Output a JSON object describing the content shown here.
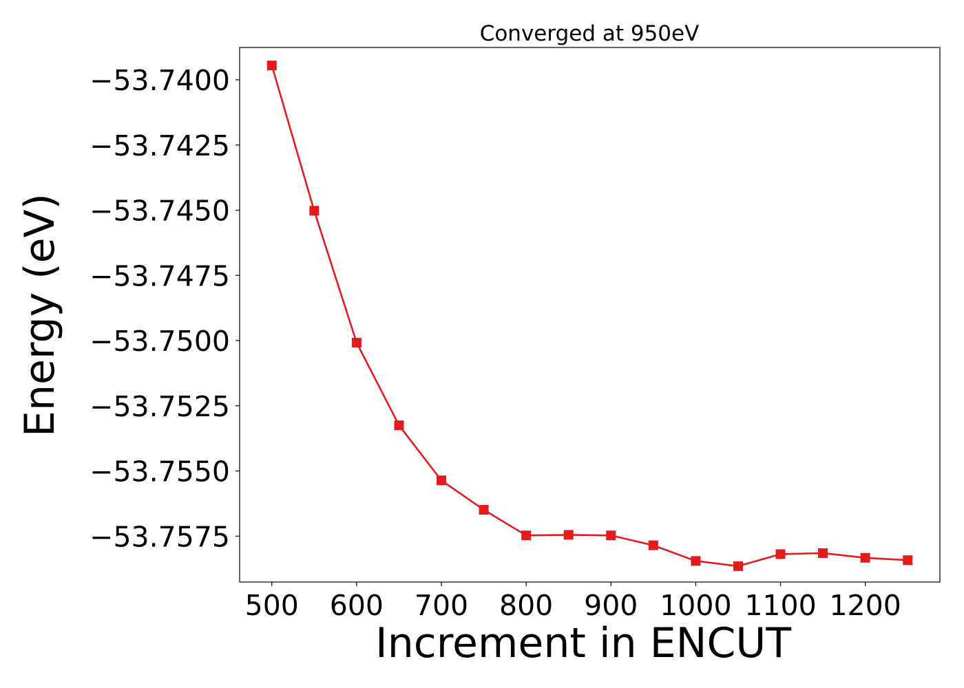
{
  "chart_data": {
    "type": "line",
    "title": "Converged at 950eV",
    "xlabel": "Increment in ENCUT",
    "ylabel": "Energy (eV)",
    "x": [
      500,
      550,
      600,
      650,
      700,
      750,
      800,
      850,
      900,
      950,
      1000,
      1050,
      1100,
      1150,
      1200,
      1250
    ],
    "series": [
      {
        "values": [
          -53.73945,
          -53.74502,
          -53.75008,
          -53.75325,
          -53.75536,
          -53.75649,
          -53.75747,
          -53.75745,
          -53.75747,
          -53.75785,
          -53.75845,
          -53.75865,
          -53.75819,
          -53.75815,
          -53.75833,
          -53.75842
        ],
        "color": "#e41a1c",
        "marker": "square"
      }
    ],
    "xlim": [
      462,
      1288
    ],
    "ylim": [
      -53.75926,
      -53.73876
    ],
    "xticks": [
      500,
      600,
      700,
      800,
      900,
      1000,
      1100,
      1200
    ],
    "xtick_labels": [
      "500",
      "600",
      "700",
      "800",
      "900",
      "1000",
      "1100",
      "1200"
    ],
    "yticks": [
      -53.74,
      -53.7425,
      -53.745,
      -53.7475,
      -53.75,
      -53.7525,
      -53.755,
      -53.7575
    ],
    "ytick_labels": [
      "−53.7400",
      "−53.7425",
      "−53.7450",
      "−53.7475",
      "−53.7500",
      "−53.7525",
      "−53.7550",
      "−53.7575"
    ],
    "grid": false,
    "legend": "none"
  }
}
